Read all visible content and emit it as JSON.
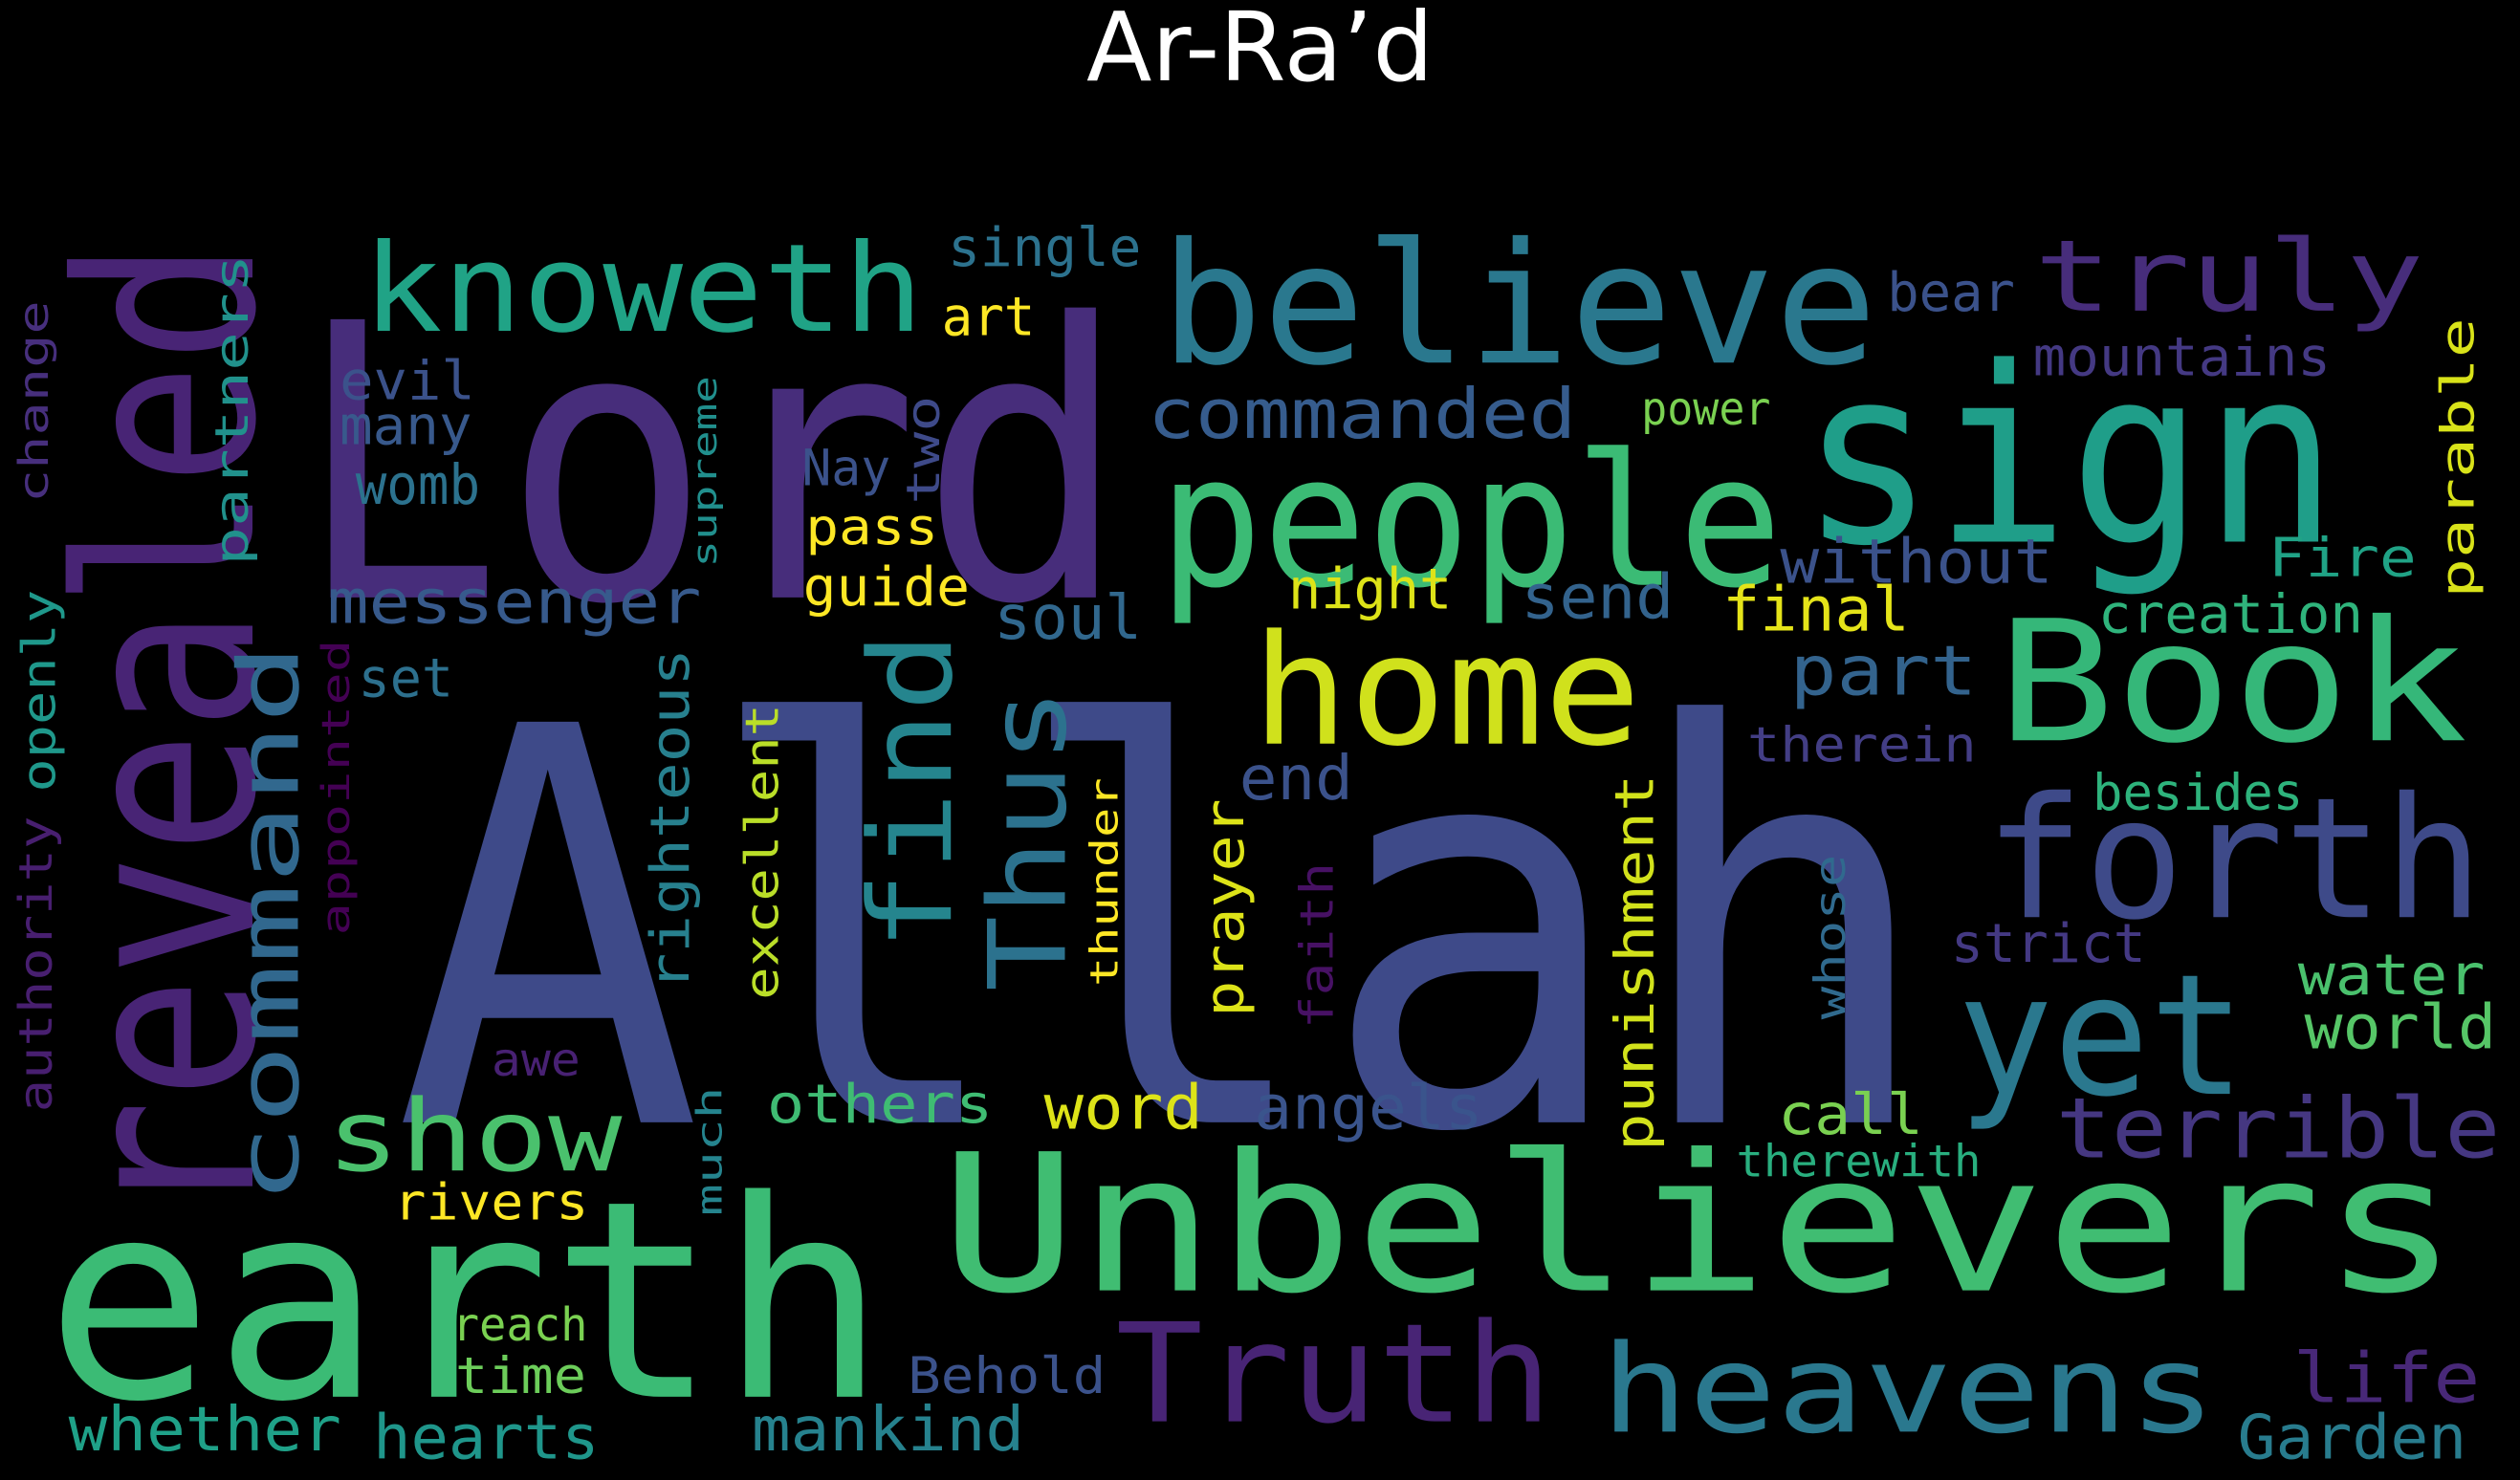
{
  "title": "Ar-Ra’d",
  "words": [
    {
      "text": "Allah",
      "color": "#3e4a89"
    },
    {
      "text": "Lord",
      "color": "#472d7b"
    },
    {
      "text": "earth",
      "color": "#3bbb75"
    },
    {
      "text": "Unbelievers",
      "color": "#40bd72"
    },
    {
      "text": "revealed",
      "color": "#482475"
    },
    {
      "text": "sign",
      "color": "#1f9e89"
    },
    {
      "text": "believe",
      "color": "#2a788e"
    },
    {
      "text": "people",
      "color": "#3bbb75"
    },
    {
      "text": "Book",
      "color": "#35b779"
    },
    {
      "text": "home",
      "color": "#d0e11c"
    },
    {
      "text": "heavens",
      "color": "#2a788e"
    },
    {
      "text": "Truth",
      "color": "#482475"
    },
    {
      "text": "forth",
      "color": "#3e4a89"
    },
    {
      "text": "knoweth",
      "color": "#20a386"
    },
    {
      "text": "truly",
      "color": "#472d7b"
    },
    {
      "text": "yet",
      "color": "#2a788e"
    },
    {
      "text": "command",
      "color": "#31688e"
    },
    {
      "text": "show",
      "color": "#4ac16d"
    },
    {
      "text": "find",
      "color": "#25858e"
    },
    {
      "text": "Thus",
      "color": "#2c728e"
    },
    {
      "text": "terrible",
      "color": "#453781"
    },
    {
      "text": "commanded",
      "color": "#365c8d"
    },
    {
      "text": "messenger",
      "color": "#375a8c"
    },
    {
      "text": "partners",
      "color": "#21918c"
    },
    {
      "text": "righteous",
      "color": "#27808e"
    },
    {
      "text": "punishment",
      "color": "#d2e21b"
    },
    {
      "text": "excellent",
      "color": "#bade28"
    },
    {
      "text": "prayer",
      "color": "#dde318"
    },
    {
      "text": "angels",
      "color": "#3a548c"
    },
    {
      "text": "others",
      "color": "#3fbc73"
    },
    {
      "text": "word",
      "color": "#dde318"
    },
    {
      "text": "mankind",
      "color": "#26828e"
    },
    {
      "text": "whether",
      "color": "#1fa188"
    },
    {
      "text": "hearts",
      "color": "#1f968b"
    },
    {
      "text": "Garden",
      "color": "#287c8e"
    },
    {
      "text": "life",
      "color": "#482878"
    },
    {
      "text": "water",
      "color": "#4ac16d"
    },
    {
      "text": "world",
      "color": "#56c667"
    },
    {
      "text": "without",
      "color": "#3b528b"
    },
    {
      "text": "final",
      "color": "#e5e419"
    },
    {
      "text": "soul",
      "color": "#31688e"
    },
    {
      "text": "send",
      "color": "#33638d"
    },
    {
      "text": "part",
      "color": "#33638d"
    },
    {
      "text": "night",
      "color": "#dde318"
    },
    {
      "text": "end",
      "color": "#3b528b"
    },
    {
      "text": "Fire",
      "color": "#20a386"
    },
    {
      "text": "creation",
      "color": "#2fb47c"
    },
    {
      "text": "parable",
      "color": "#d8e219"
    },
    {
      "text": "mountains",
      "color": "#443983"
    },
    {
      "text": "bear",
      "color": "#3b528b"
    },
    {
      "text": "single",
      "color": "#2c728e"
    },
    {
      "text": "art",
      "color": "#fde725"
    },
    {
      "text": "evil",
      "color": "#3b528b"
    },
    {
      "text": "many",
      "color": "#38598c"
    },
    {
      "text": "womb",
      "color": "#2c728e"
    },
    {
      "text": "Nay",
      "color": "#3b528b"
    },
    {
      "text": "two",
      "color": "#3e4a89"
    },
    {
      "text": "pass",
      "color": "#fde725"
    },
    {
      "text": "guide",
      "color": "#fde725"
    },
    {
      "text": "power",
      "color": "#7ad151"
    },
    {
      "text": "supreme",
      "color": "#218f8d"
    },
    {
      "text": "change",
      "color": "#472f7d"
    },
    {
      "text": "openly",
      "color": "#1f988b"
    },
    {
      "text": "authority",
      "color": "#481f70"
    },
    {
      "text": "appointed",
      "color": "#440154"
    },
    {
      "text": "set",
      "color": "#2d708e"
    },
    {
      "text": "thunder",
      "color": "#fde725"
    },
    {
      "text": "faith",
      "color": "#471164"
    },
    {
      "text": "whose",
      "color": "#306a8e"
    },
    {
      "text": "strict",
      "color": "#443983"
    },
    {
      "text": "therein",
      "color": "#433e85"
    },
    {
      "text": "besides",
      "color": "#2eb37c"
    },
    {
      "text": "call",
      "color": "#7ad151"
    },
    {
      "text": "therewith",
      "color": "#29af7f"
    },
    {
      "text": "awe",
      "color": "#482173"
    },
    {
      "text": "much",
      "color": "#25848e"
    },
    {
      "text": "rivers",
      "color": "#fde725"
    },
    {
      "text": "reach",
      "color": "#7ad151"
    },
    {
      "text": "time",
      "color": "#6ccd5a"
    },
    {
      "text": "Behold",
      "color": "#3b528b"
    }
  ]
}
